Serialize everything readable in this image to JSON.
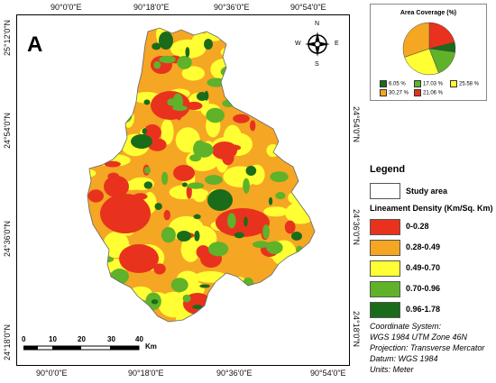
{
  "panel_label": "A",
  "lon_ticks": [
    "90°0'0\"E",
    "90°18'0\"E",
    "90°36'0\"E",
    "90°54'0\"E"
  ],
  "lat_ticks": [
    "25°12'0\"N",
    "24°54'0\"N",
    "24°36'0\"N",
    "24°18'0\"N"
  ],
  "north_arrow": {
    "n": "N",
    "s": "S",
    "e": "E",
    "w": "W"
  },
  "pie": {
    "title": "Area Coverage (%)",
    "slices": [
      {
        "label": "6.05 %",
        "value": 6.05,
        "color": "#1a6b1a"
      },
      {
        "label": "17.03 %",
        "value": 17.03,
        "color": "#5fb22a"
      },
      {
        "label": "25.58 %",
        "value": 25.58,
        "color": "#ffff33"
      },
      {
        "label": "30.27 %",
        "value": 30.27,
        "color": "#f5a623"
      },
      {
        "label": "21.06 %",
        "value": 21.06,
        "color": "#e8321e"
      }
    ]
  },
  "legend": {
    "title": "Legend",
    "study_area": "Study area",
    "density_title": "Lineament Density (Km/Sq. Km)",
    "classes": [
      {
        "label": "0-0.28",
        "color": "#e8321e"
      },
      {
        "label": "0.28-0.49",
        "color": "#f5a623"
      },
      {
        "label": "0.49-0.70",
        "color": "#ffff33"
      },
      {
        "label": "0.70-0.96",
        "color": "#5fb22a"
      },
      {
        "label": "0.96-1.78",
        "color": "#1a6b1a"
      }
    ]
  },
  "coord_info": [
    "Coordinate System:",
    "WGS 1984 UTM Zone 46N",
    "Projection: Transverse Mercator",
    "Datum: WGS 1984",
    "Units: Meter"
  ],
  "scale": {
    "labels": [
      "0",
      "10",
      "20",
      "30",
      "40"
    ],
    "unit": "Km"
  }
}
